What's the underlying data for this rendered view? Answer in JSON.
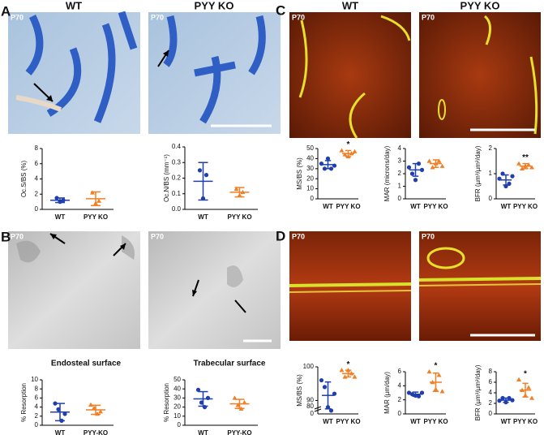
{
  "panels": {
    "A": {
      "label": "A",
      "headers": [
        "WT",
        "PYY KO"
      ],
      "ages": [
        "P70",
        "P70"
      ]
    },
    "B": {
      "label": "B",
      "ages": [
        "P70",
        "P70"
      ]
    },
    "C": {
      "label": "C",
      "headers": [
        "WT",
        "PYY KO"
      ],
      "ages": [
        "P70",
        "P70"
      ]
    },
    "D": {
      "label": "D",
      "ages": [
        "P70",
        "P70"
      ]
    }
  },
  "chart_data": [
    {
      "type": "dot",
      "ylabel": "Oc.S/BS (%)",
      "categories": [
        "WT",
        "PYY KO"
      ],
      "ylim": [
        0,
        8
      ],
      "yticks": [
        0,
        2,
        4,
        6,
        8
      ],
      "groups": [
        {
          "color": "#1f3fae",
          "points": [
            1.5,
            1.0,
            1.2
          ],
          "mean": 1.2,
          "sd": 0.3
        },
        {
          "color": "#f07f26",
          "points": [
            2.2,
            0.8,
            1.1
          ],
          "mean": 1.4,
          "sd": 0.9
        }
      ]
    },
    {
      "type": "dot",
      "ylabel": "Oc.N/BS (mm⁻¹)",
      "categories": [
        "WT",
        "PYY KO"
      ],
      "ylim": [
        0,
        0.4
      ],
      "yticks": [
        {
          "value": 0,
          "label": "0.0"
        },
        0.1,
        0.2,
        0.3,
        0.4
      ],
      "groups": [
        {
          "color": "#1f3fae",
          "points": [
            0.25,
            0.07,
            0.22
          ],
          "mean": 0.18,
          "sd": 0.12
        },
        {
          "color": "#f07f26",
          "points": [
            0.13,
            0.09,
            0.11
          ],
          "mean": 0.11,
          "sd": 0.03
        }
      ]
    },
    {
      "type": "dot",
      "ylabel": "MS/BS (%)",
      "categories": [
        "WT",
        "PYY KO"
      ],
      "ylim": [
        0,
        50
      ],
      "yticks": [
        0,
        10,
        20,
        30,
        40,
        50
      ],
      "annotation": "*",
      "groups": [
        {
          "color": "#1f3fae",
          "points": [
            35,
            30,
            40,
            30,
            33
          ],
          "mean": 34,
          "sd": 4
        },
        {
          "color": "#f07f26",
          "points": [
            48,
            44,
            42,
            45,
            47
          ],
          "mean": 45,
          "sd": 3
        }
      ]
    },
    {
      "type": "dot",
      "ylabel": "MAR (microns/day)",
      "categories": [
        "WT",
        "PYY KO"
      ],
      "ylim": [
        0,
        4
      ],
      "yticks": [
        0,
        1,
        2,
        3,
        4
      ],
      "groups": [
        {
          "color": "#1f3fae",
          "points": [
            2.5,
            2.0,
            1.5,
            2.8,
            2.3
          ],
          "mean": 2.3,
          "sd": 0.5
        },
        {
          "color": "#f07f26",
          "points": [
            3.0,
            2.5,
            2.8,
            3.0,
            2.6
          ],
          "mean": 2.8,
          "sd": 0.3
        }
      ]
    },
    {
      "type": "dot",
      "ylabel": "BFR (µm³/µm²/day)",
      "categories": [
        "WT",
        "PYY KO"
      ],
      "ylim": [
        0,
        2
      ],
      "yticks": [
        0,
        1,
        2
      ],
      "annotation": "**",
      "groups": [
        {
          "color": "#1f3fae",
          "points": [
            0.8,
            1.0,
            0.5,
            0.6,
            0.9
          ],
          "mean": 0.75,
          "sd": 0.2
        },
        {
          "color": "#f07f26",
          "points": [
            1.4,
            1.2,
            1.3,
            1.35,
            1.25
          ],
          "mean": 1.3,
          "sd": 0.1
        }
      ]
    },
    {
      "type": "dot",
      "title": "Endosteal surface",
      "ylabel": "% Resorption",
      "categories": [
        "WT",
        "PYY-KO"
      ],
      "ylim": [
        0,
        10
      ],
      "yticks": [
        0,
        2,
        4,
        6,
        8,
        10
      ],
      "groups": [
        {
          "color": "#1f3fae",
          "points": [
            4.8,
            3.5,
            1.0,
            2.5
          ],
          "mean": 2.9,
          "sd": 1.9
        },
        {
          "color": "#f07f26",
          "points": [
            4.5,
            3.8,
            2.5,
            3.0
          ],
          "mean": 3.4,
          "sd": 1.0
        }
      ]
    },
    {
      "type": "dot",
      "title": "Trabecular surface",
      "ylabel": "% Resorption",
      "categories": [
        "WT",
        "PYY-KO"
      ],
      "ylim": [
        0,
        50
      ],
      "yticks": [
        0,
        10,
        20,
        30,
        40,
        50
      ],
      "groups": [
        {
          "color": "#1f3fae",
          "points": [
            39,
            25,
            20,
            30
          ],
          "mean": 29,
          "sd": 8
        },
        {
          "color": "#f07f26",
          "points": [
            30,
            22,
            18,
            25
          ],
          "mean": 23.5,
          "sd": 5
        }
      ]
    },
    {
      "type": "dot",
      "ylabel": "MS/BS (%)",
      "categories": [
        "WT",
        "PYY KO"
      ],
      "ylim": [
        86,
        100
      ],
      "yticks": [
        90,
        100
      ],
      "axis_break_ticks": [
        80,
        0
      ],
      "annotation": "*",
      "groups": [
        {
          "color": "#1f3fae",
          "points": [
            96,
            94,
            88,
            87,
            92
          ],
          "mean": 91.5,
          "sd": 4
        },
        {
          "color": "#f07f26",
          "points": [
            99,
            97,
            99,
            98,
            97
          ],
          "mean": 98,
          "sd": 1
        }
      ]
    },
    {
      "type": "dot",
      "ylabel": "MAR (µm/day)",
      "categories": [
        "WT",
        "PYY KO"
      ],
      "ylim": [
        0,
        6
      ],
      "yticks": [
        0,
        2,
        4,
        6
      ],
      "annotation": "*",
      "groups": [
        {
          "color": "#1f3fae",
          "points": [
            3.0,
            2.8,
            2.6,
            2.5,
            3.0
          ],
          "mean": 2.8,
          "sd": 0.3
        },
        {
          "color": "#f07f26",
          "points": [
            6.0,
            4.5,
            3.5,
            5.5,
            3.2
          ],
          "mean": 4.5,
          "sd": 1.3
        }
      ]
    },
    {
      "type": "dot",
      "ylabel": "BFR (µm³/µm²/day)",
      "categories": [
        "WT",
        "PYY KO"
      ],
      "ylim": [
        0,
        8
      ],
      "yticks": [
        0,
        2,
        4,
        6,
        8
      ],
      "annotation": "*",
      "groups": [
        {
          "color": "#1f3fae",
          "points": [
            2.5,
            3.0,
            2.2,
            3.0,
            2.6
          ],
          "mean": 2.6,
          "sd": 0.4
        },
        {
          "color": "#f07f26",
          "points": [
            6.5,
            4.5,
            3.5,
            5.0,
            3.0
          ],
          "mean": 4.5,
          "sd": 1.3
        }
      ]
    }
  ]
}
